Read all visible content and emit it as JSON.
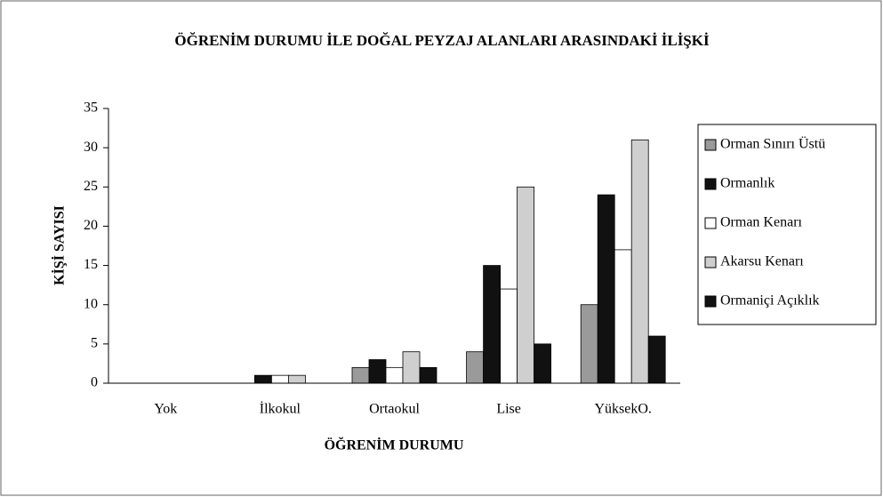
{
  "chart_data": {
    "type": "bar",
    "title": "ÖĞRENİM DURUMU İLE DOĞAL PEYZAJ ALANLARI ARASINDAKİ İLİŞKİ",
    "xlabel": "ÖĞRENİM DURUMU",
    "ylabel": "KİŞİ SAYISI",
    "categories": [
      "Yok",
      "İlkokul",
      "Ortaokul",
      "Lise",
      "YüksekO."
    ],
    "series": [
      {
        "name": "Orman Sınırı Üstü",
        "color": "#9a9a9a",
        "values": [
          0,
          0,
          2,
          4,
          10
        ]
      },
      {
        "name": "Ormanlık",
        "color": "#111111",
        "values": [
          0,
          1,
          3,
          15,
          24
        ]
      },
      {
        "name": "Orman Kenarı",
        "color": "#ffffff",
        "values": [
          0,
          1,
          2,
          12,
          17
        ]
      },
      {
        "name": "Akarsu Kenarı",
        "color": "#cfcfcf",
        "values": [
          0,
          1,
          4,
          25,
          31
        ]
      },
      {
        "name": "Ormaniçi Açıklık",
        "color": "#111111",
        "values": [
          0,
          0,
          2,
          5,
          6
        ]
      }
    ],
    "ylim": [
      0,
      35
    ],
    "yticks": [
      0,
      5,
      10,
      15,
      20,
      25,
      30,
      35
    ],
    "grid": false,
    "legend": "right"
  }
}
